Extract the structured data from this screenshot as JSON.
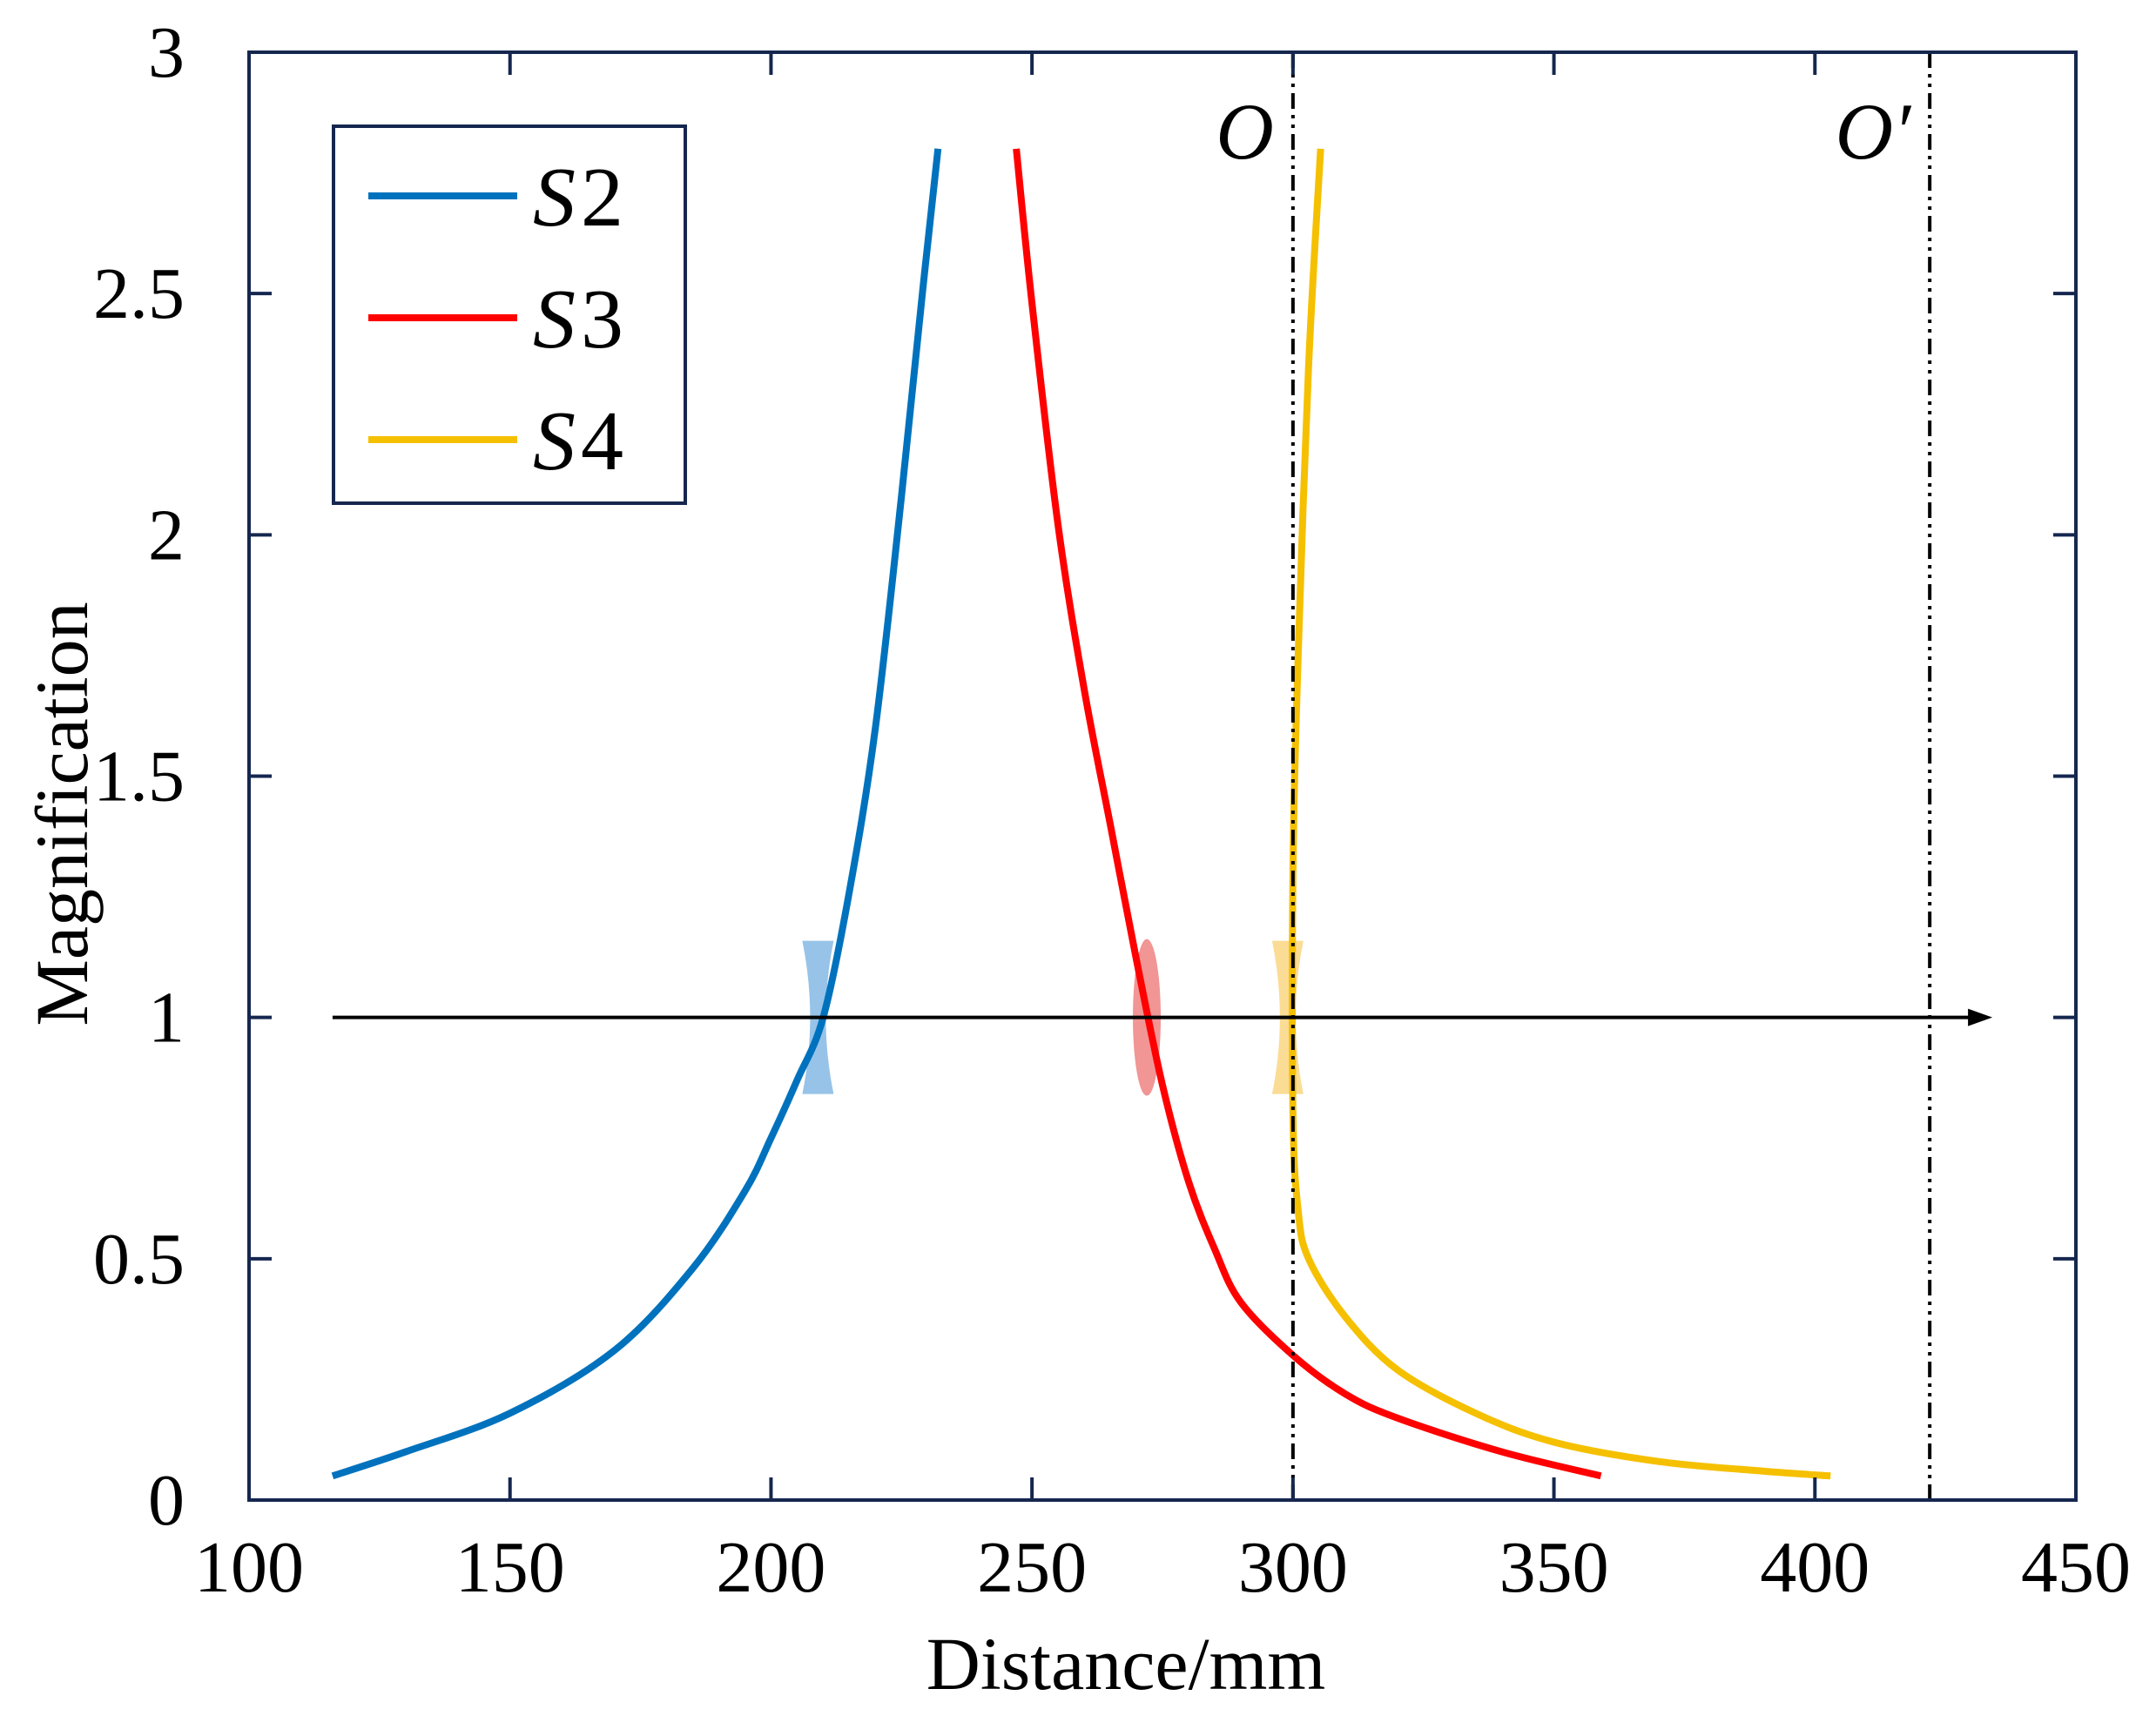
{
  "chart_data": {
    "type": "line",
    "xlabel": "Distance/mm",
    "ylabel": "Magnification",
    "xlim": [
      100,
      450
    ],
    "ylim": [
      0,
      3
    ],
    "xticks": [
      100,
      150,
      200,
      250,
      300,
      350,
      400,
      450
    ],
    "yticks": [
      0,
      0.5,
      1,
      1.5,
      2,
      2.5,
      3
    ],
    "ytick_labels": [
      "0",
      "0.5",
      "1",
      "1.5",
      "2",
      "2.5",
      "3"
    ],
    "grid": false,
    "legend_position": "top-left",
    "series": [
      {
        "name": "S2",
        "name_prefix": "S",
        "name_index": "2",
        "color": "#0072BD",
        "x": [
          116,
          130,
          150,
          170,
          185,
          195,
          200,
          205,
          210,
          215,
          220,
          225,
          229,
          232
        ],
        "y": [
          0.05,
          0.1,
          0.18,
          0.31,
          0.48,
          0.64,
          0.75,
          0.87,
          1.0,
          1.26,
          1.6,
          2.08,
          2.5,
          2.8
        ]
      },
      {
        "name": "S3",
        "name_prefix": "S",
        "name_index": "3",
        "color": "#FF0000",
        "x": [
          247,
          250,
          255,
          260,
          265,
          270,
          275,
          280,
          285,
          290,
          300,
          310,
          320,
          340,
          359
        ],
        "y": [
          2.8,
          2.48,
          2.02,
          1.68,
          1.4,
          1.12,
          0.86,
          0.66,
          0.52,
          0.41,
          0.3,
          0.22,
          0.17,
          0.1,
          0.05
        ]
      },
      {
        "name": "S4",
        "name_prefix": "S",
        "name_index": "4",
        "color": "#F5C000",
        "x": [
          305.3,
          303,
          301,
          300,
          300,
          301,
          303,
          310,
          320,
          335,
          350,
          370,
          390,
          403
        ],
        "y": [
          2.8,
          2.35,
          1.75,
          1.3,
          0.8,
          0.6,
          0.5,
          0.38,
          0.27,
          0.18,
          0.12,
          0.08,
          0.06,
          0.05
        ]
      }
    ],
    "optical_axis": {
      "y": 1,
      "x_start": 116,
      "x_end": 434
    },
    "reference_lines": [
      {
        "label": "O",
        "x": 300
      },
      {
        "label": "O′",
        "x": 422
      }
    ],
    "lens_markers": [
      {
        "kind": "concave",
        "x": 209,
        "color": "#8CBDE6"
      },
      {
        "kind": "convex",
        "x": 272,
        "color": "#F08A8A"
      },
      {
        "kind": "concave",
        "x": 299,
        "color": "#FAD88A"
      }
    ]
  }
}
